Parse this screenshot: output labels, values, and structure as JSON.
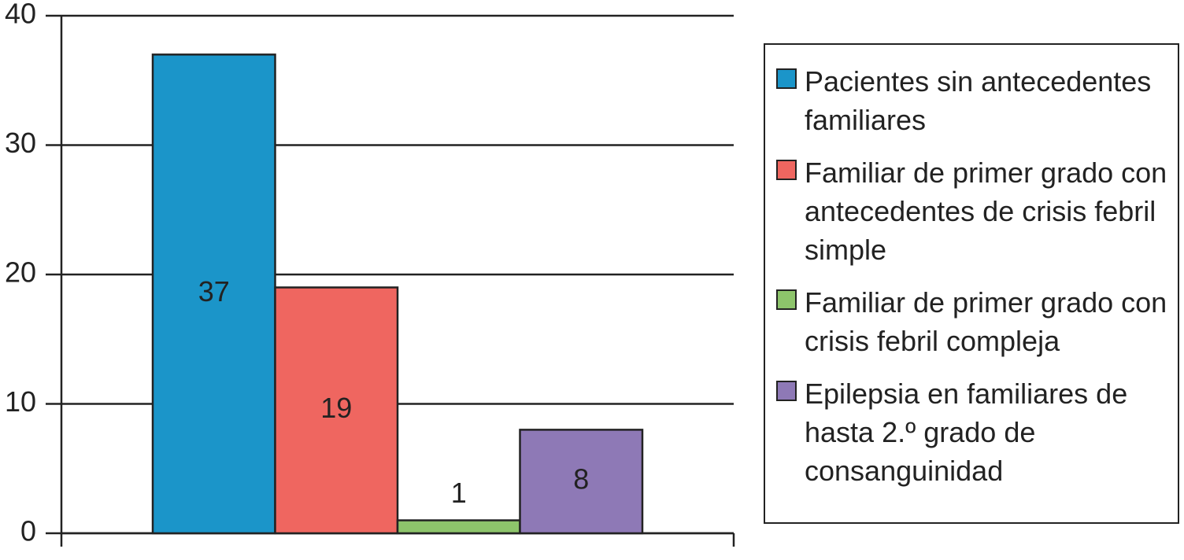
{
  "chart_data": {
    "type": "bar",
    "categories": [
      null
    ],
    "series": [
      {
        "name": "Pacientes sin antecedentes familiares",
        "color": "#1b95c9",
        "values": [
          37
        ]
      },
      {
        "name": "Familiar de primer grado con antecedentes de crisis febril simple",
        "color": "#ef6660",
        "values": [
          19
        ]
      },
      {
        "name": "Familiar de primer grado con crisis febril compleja",
        "color": "#8dc46b",
        "values": [
          1
        ]
      },
      {
        "name": "Epilepsia en familiares de hasta 2.º grado de consanguinidad",
        "color": "#8e79b6",
        "values": [
          8
        ]
      }
    ],
    "ylim": [
      0,
      40
    ],
    "yticks": [
      0,
      10,
      20,
      30,
      40
    ],
    "grid": true
  }
}
